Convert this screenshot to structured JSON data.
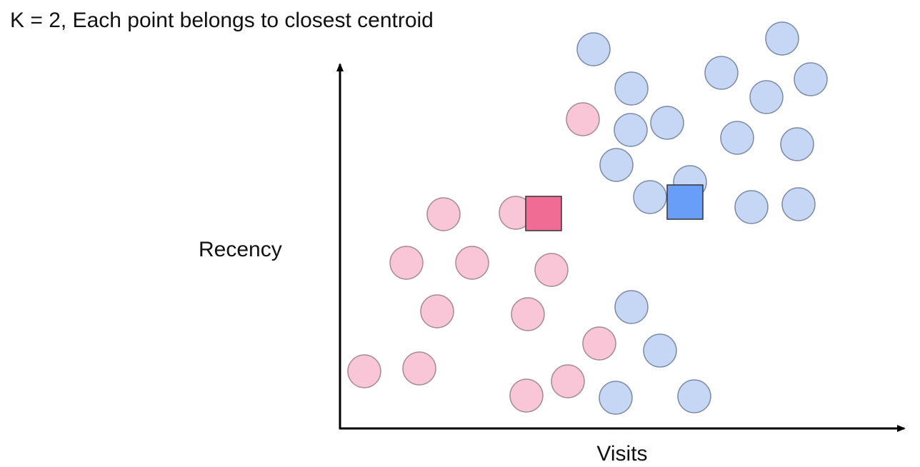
{
  "title": "K = 2, Each point belongs to closest centroid",
  "y_axis_label": "Recency",
  "x_axis_label": "Visits"
}
